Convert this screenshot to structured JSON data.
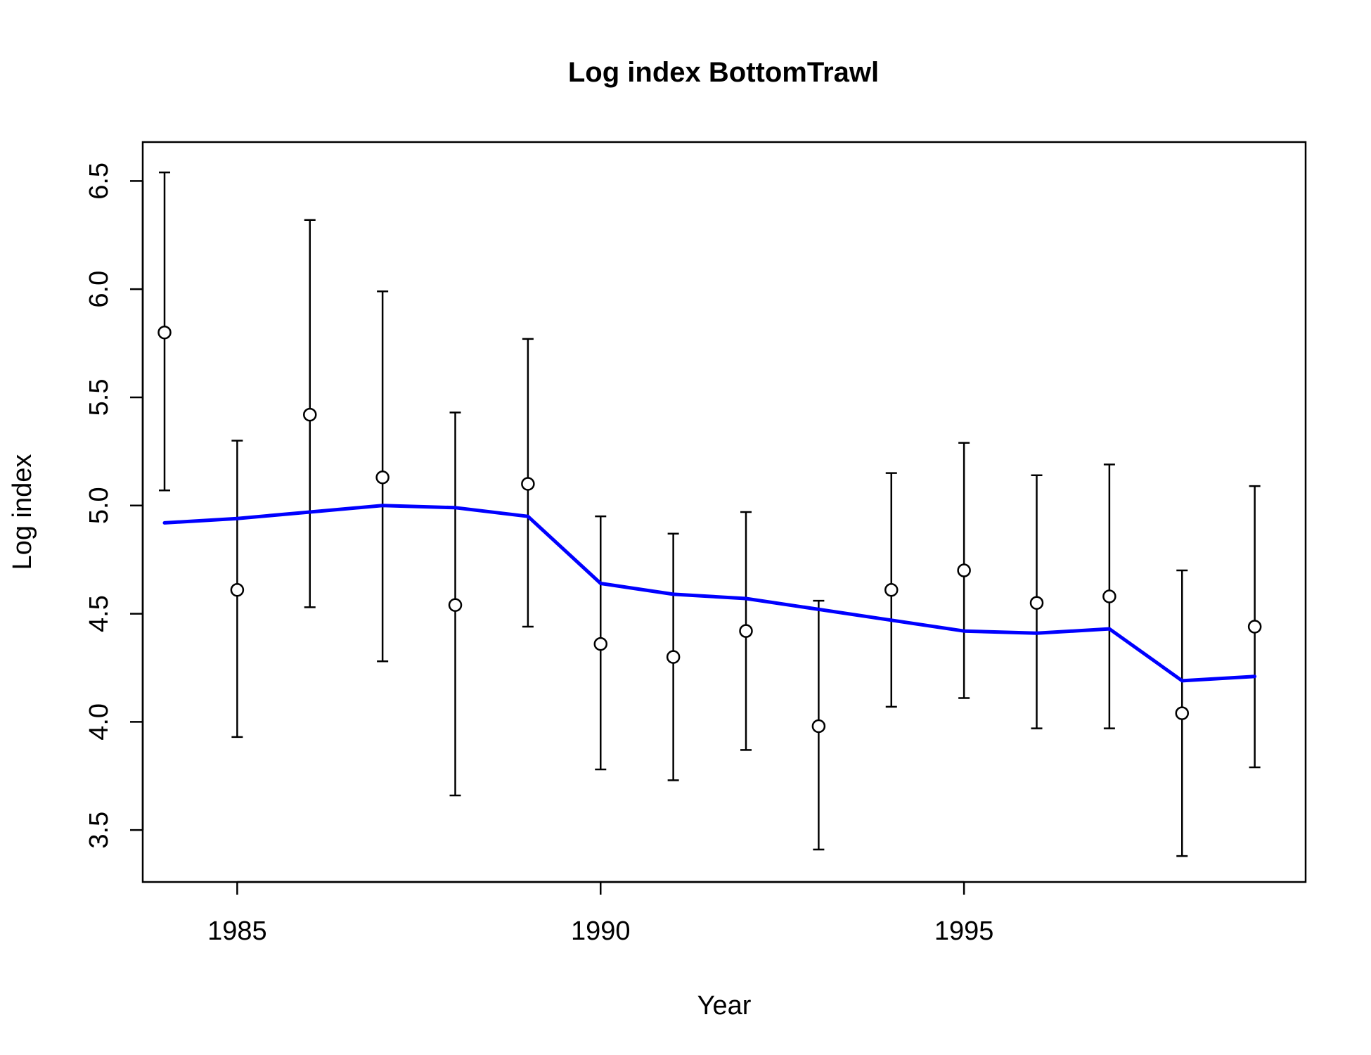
{
  "chart_data": {
    "type": "scatter",
    "title": "Log index BottomTrawl",
    "xlabel": "Year",
    "ylabel": "Log index",
    "xlim": [
      1983.7,
      1999.7
    ],
    "ylim": [
      3.26,
      6.68
    ],
    "xticks": [
      1985,
      1990,
      1995
    ],
    "yticks": [
      "3.5",
      "4.0",
      "4.5",
      "5.0",
      "5.5",
      "6.0",
      "6.5"
    ],
    "grid": false,
    "legend": "none",
    "colors": {
      "observed": "#000000",
      "fitted": "#0000ff",
      "errorbar": "#000000"
    },
    "series": [
      {
        "kind": "observed-with-errorbars",
        "x": [
          1984,
          1985,
          1986,
          1987,
          1988,
          1989,
          1990,
          1991,
          1992,
          1993,
          1994,
          1995,
          1996,
          1997,
          1998,
          1999
        ],
        "y": [
          5.8,
          4.61,
          5.42,
          5.13,
          4.54,
          5.1,
          4.36,
          4.3,
          4.42,
          3.98,
          4.61,
          4.7,
          4.55,
          4.58,
          4.04,
          4.44
        ],
        "lower": [
          5.07,
          3.93,
          4.53,
          4.28,
          3.66,
          4.44,
          3.78,
          3.73,
          3.87,
          3.41,
          4.07,
          4.11,
          3.97,
          3.97,
          3.38,
          3.79
        ],
        "upper": [
          6.54,
          5.3,
          6.32,
          5.99,
          5.43,
          5.77,
          4.95,
          4.87,
          4.97,
          4.56,
          5.15,
          5.29,
          5.14,
          5.19,
          4.7,
          5.09
        ]
      },
      {
        "kind": "fitted-line",
        "x": [
          1984,
          1985,
          1986,
          1987,
          1988,
          1989,
          1990,
          1991,
          1992,
          1993,
          1994,
          1995,
          1996,
          1997,
          1998,
          1999
        ],
        "y": [
          4.92,
          4.94,
          4.97,
          5.0,
          4.99,
          4.95,
          4.64,
          4.59,
          4.57,
          4.52,
          4.47,
          4.42,
          4.41,
          4.43,
          4.19,
          4.21
        ]
      }
    ]
  }
}
